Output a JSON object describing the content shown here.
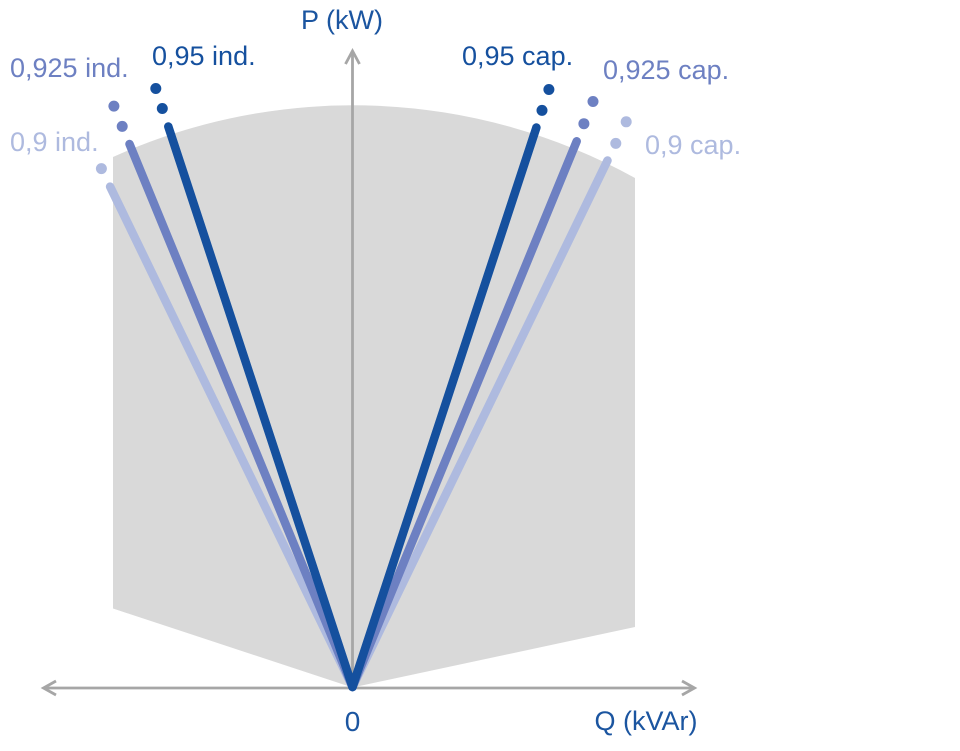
{
  "chart_data": {
    "type": "line",
    "title": "",
    "description": "P-Q power capability diagram: apparent-power operating region (gray) with constant power-factor boundary lines for inductive (left) and capacitive (right) reactive power.",
    "xlabel": "Q (kVAr)",
    "ylabel": "P (kW)",
    "origin_label": "0",
    "x_ticks": [
      "0"
    ],
    "grid": false,
    "legend_position": "labels-at-line-ends",
    "axis_color": "#a6a6a6",
    "axis_label_color": "#1b55a0",
    "region_color": "#d9d9d9",
    "series": [
      {
        "label": "0,95 ind.",
        "power_factor": 0.95,
        "side": "inductive",
        "color": "#15509e",
        "solid_r": 590,
        "dot_rs": [
          609,
          630
        ]
      },
      {
        "label": "0,925 ind.",
        "power_factor": 0.925,
        "side": "inductive",
        "color": "#6d80c2",
        "solid_r": 587,
        "dot_rs": [
          606,
          628
        ]
      },
      {
        "label": "0,9 ind.",
        "power_factor": 0.9,
        "side": "inductive",
        "color": "#aebadf",
        "solid_r": 556,
        "dot_rs": [
          576
        ]
      },
      {
        "label": "0,95 cap.",
        "power_factor": 0.95,
        "side": "capacitive",
        "color": "#15509e",
        "solid_r": 589,
        "dot_rs": [
          607,
          629
        ]
      },
      {
        "label": "0,925 cap.",
        "power_factor": 0.925,
        "side": "capacitive",
        "color": "#6d80c2",
        "solid_r": 590,
        "dot_rs": [
          609,
          633
        ]
      },
      {
        "label": "0,9 cap.",
        "power_factor": 0.9,
        "side": "capacitive",
        "color": "#aebadf",
        "solid_r": 585,
        "dot_rs": [
          604,
          628
        ]
      }
    ]
  }
}
